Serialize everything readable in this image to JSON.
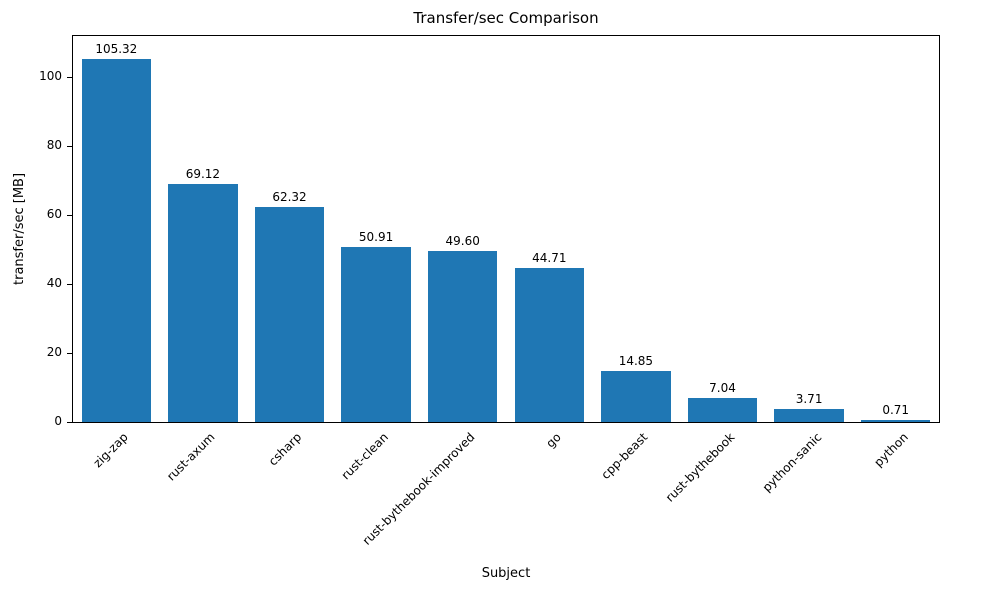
{
  "chart_data": {
    "type": "bar",
    "title": "Transfer/sec Comparison",
    "xlabel": "Subject",
    "ylabel": "transfer/sec [MB]",
    "categories": [
      "zig-zap",
      "rust-axum",
      "csharp",
      "rust-clean",
      "rust-bythebook-improved",
      "go",
      "cpp-beast",
      "rust-bythebook",
      "python-sanic",
      "python"
    ],
    "values": [
      105.32,
      69.12,
      62.32,
      50.91,
      49.6,
      44.71,
      14.85,
      7.04,
      3.71,
      0.71
    ],
    "value_labels": [
      "105.32",
      "69.12",
      "62.32",
      "50.91",
      "49.60",
      "44.71",
      "14.85",
      "7.04",
      "3.71",
      "0.71"
    ],
    "yticks": [
      0,
      20,
      40,
      60,
      80,
      100
    ],
    "ylim": [
      0,
      112
    ],
    "bar_color": "#1f77b4",
    "grid": false,
    "legend": null,
    "background": "#ffffff"
  }
}
